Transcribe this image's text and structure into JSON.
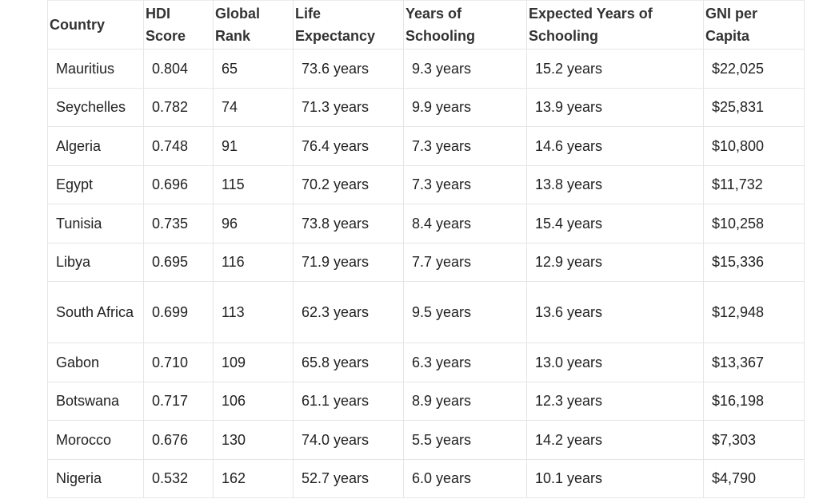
{
  "table": {
    "headers": [
      "Country",
      "HDI Score",
      "Global Rank",
      "Life Expectancy",
      "Years of Schooling",
      "Expected Years of Schooling",
      "GNI per Capita"
    ],
    "rows": [
      [
        "Mauritius",
        "0.804",
        "65",
        "73.6 years",
        "9.3 years",
        "15.2 years",
        "$22,025"
      ],
      [
        "Seychelles",
        "0.782",
        "74",
        "71.3 years",
        "9.9 years",
        "13.9 years",
        "$25,831"
      ],
      [
        "Algeria",
        "0.748",
        "91",
        "76.4 years",
        "7.3 years",
        "14.6 years",
        "$10,800"
      ],
      [
        "Egypt",
        "0.696",
        "115",
        "70.2 years",
        "7.3 years",
        "13.8 years",
        "$11,732"
      ],
      [
        "Tunisia",
        "0.735",
        "96",
        "73.8 years",
        "8.4 years",
        "15.4 years",
        "$10,258"
      ],
      [
        "Libya",
        "0.695",
        "116",
        "71.9 years",
        "7.7 years",
        "12.9 years",
        "$15,336"
      ],
      [
        "South Africa",
        "0.699",
        "113",
        "62.3 years",
        "9.5 years",
        "13.6 years",
        "$12,948"
      ],
      [
        "Gabon",
        "0.710",
        "109",
        "65.8 years",
        "6.3 years",
        "13.0 years",
        "$13,367"
      ],
      [
        "Botswana",
        "0.717",
        "106",
        "61.1 years",
        "8.9 years",
        "12.3 years",
        "$16,198"
      ],
      [
        "Morocco",
        "0.676",
        "130",
        "74.0 years",
        "5.5 years",
        "14.2 years",
        "$7,303"
      ],
      [
        "Nigeria",
        "0.532",
        "162",
        "52.7 years",
        "6.0 years",
        "10.1 years",
        "$4,790"
      ]
    ]
  }
}
